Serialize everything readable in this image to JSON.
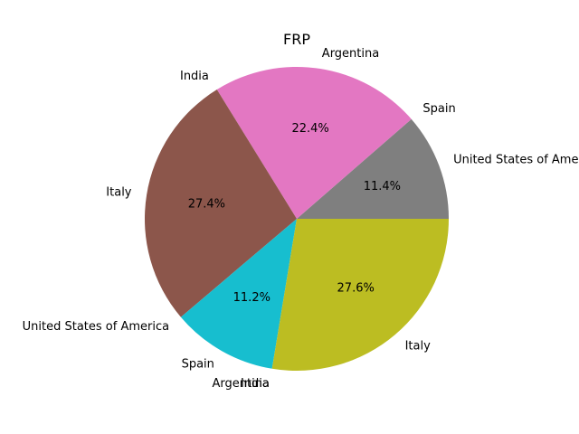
{
  "chart_data": {
    "type": "pie",
    "title": "FRP",
    "slices": [
      {
        "label": "United States of America",
        "value": 11.4,
        "pct_label": "11.4%",
        "color": "#7f7f7f"
      },
      {
        "label": "Spain",
        "value": 0.0,
        "pct_label": "",
        "color": "#bcbd22"
      },
      {
        "label": "Argentina",
        "value": 22.4,
        "pct_label": "22.4%",
        "color": "#e377c2"
      },
      {
        "label": "India",
        "value": 0.0,
        "pct_label": "",
        "color": "#9467bd"
      },
      {
        "label": "Italy",
        "value": 27.4,
        "pct_label": "27.4%",
        "color": "#8c564b"
      },
      {
        "label": "United States of America",
        "value": 0.0,
        "pct_label": "",
        "color": "#d62728"
      },
      {
        "label": "Spain",
        "value": 11.2,
        "pct_label": "11.2%",
        "color": "#17becf"
      },
      {
        "label": "Argentina",
        "value": 0.0,
        "pct_label": "",
        "color": "#2ca02c"
      },
      {
        "label": "India",
        "value": 0.0,
        "pct_label": "",
        "color": "#1f77b4"
      },
      {
        "label": "Italy",
        "value": 27.6,
        "pct_label": "27.6%",
        "color": "#bcbd22"
      }
    ],
    "start_angle_deg": 0,
    "direction": "counterclockwise",
    "legend": "none"
  }
}
